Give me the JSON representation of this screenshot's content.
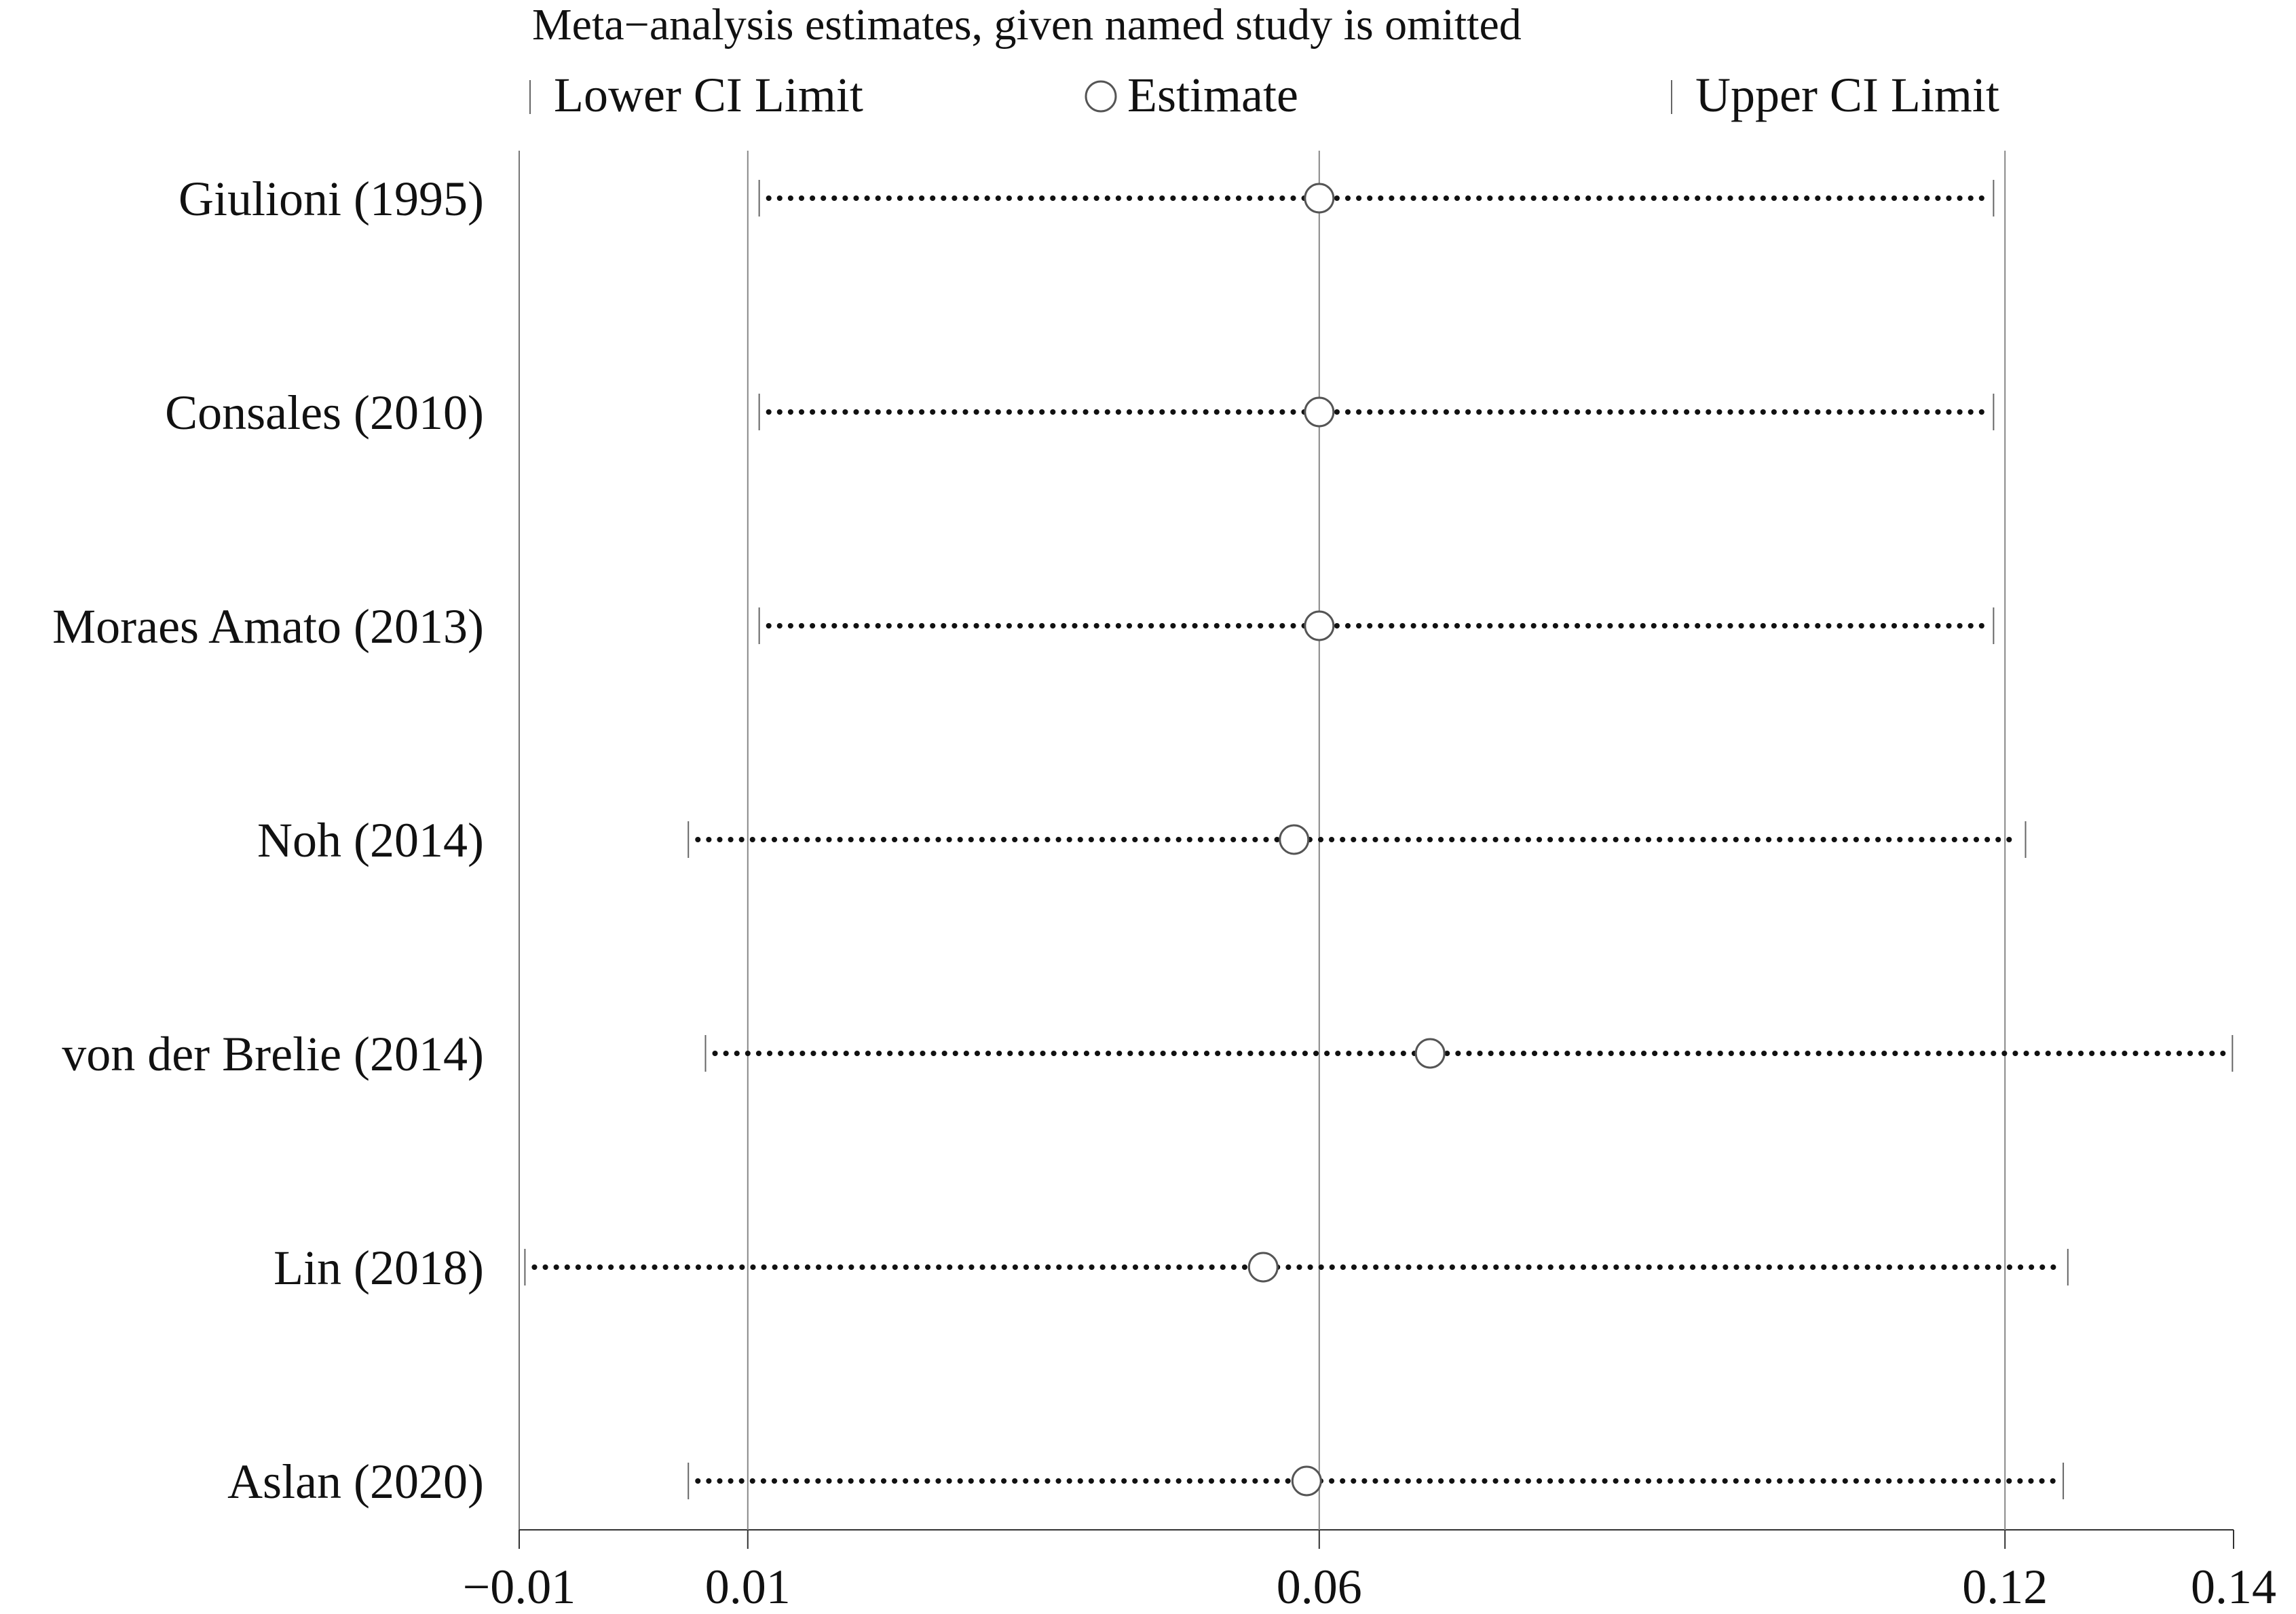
{
  "chart_data": {
    "type": "sensitivity-forest",
    "title": "Meta−analysis estimates, given named study is omitted",
    "legend": {
      "lower": "Lower CI Limit",
      "estimate": "Estimate",
      "upper": "Upper CI Limit"
    },
    "x_ticks": [
      {
        "value": -0.01,
        "label": "−0.01"
      },
      {
        "value": 0.01,
        "label": "0.01"
      },
      {
        "value": 0.06,
        "label": "0.06"
      },
      {
        "value": 0.12,
        "label": "0.12"
      },
      {
        "value": 0.14,
        "label": "0.14"
      }
    ],
    "xlim": [
      -0.01,
      0.14
    ],
    "reference_lines": [
      0.01,
      0.06,
      0.12
    ],
    "studies": [
      {
        "name": "Giulioni (1995)",
        "lower": 0.011,
        "estimate": 0.06,
        "upper": 0.119
      },
      {
        "name": "Consales (2010)",
        "lower": 0.011,
        "estimate": 0.06,
        "upper": 0.119
      },
      {
        "name": "Moraes Amato (2013)",
        "lower": 0.011,
        "estimate": 0.06,
        "upper": 0.119
      },
      {
        "name": "Noh (2014)",
        "lower": 0.0048,
        "estimate": 0.0578,
        "upper": 0.1218
      },
      {
        "name": "von der Brelie (2014)",
        "lower": 0.0063,
        "estimate": 0.0697,
        "upper": 0.1399
      },
      {
        "name": "Lin (2018)",
        "lower": -0.0095,
        "estimate": 0.0551,
        "upper": 0.1255
      },
      {
        "name": "Aslan (2020)",
        "lower": 0.0048,
        "estimate": 0.0589,
        "upper": 0.1251
      }
    ]
  }
}
